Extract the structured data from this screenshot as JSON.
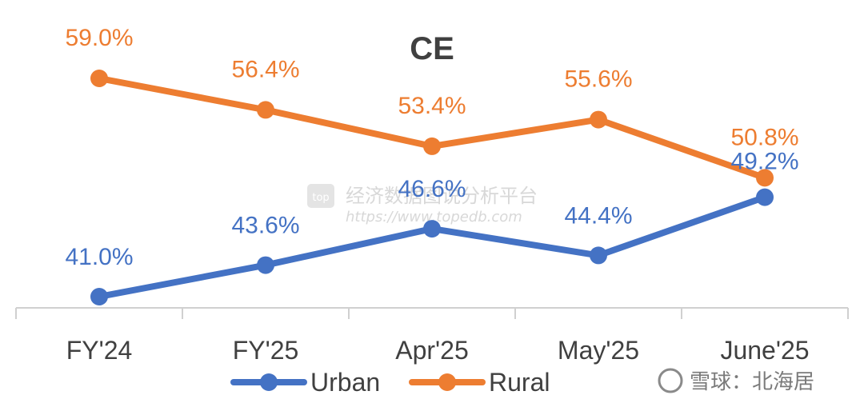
{
  "chart_data": {
    "type": "line",
    "title": "CE",
    "categories": [
      "FY'24",
      "FY'25",
      "Apr'25",
      "May'25",
      "June'25"
    ],
    "series": [
      {
        "name": "Urban",
        "color": "#4472C4",
        "values": [
          41.0,
          43.6,
          46.6,
          44.4,
          49.2
        ],
        "labels": [
          "41.0%",
          "43.6%",
          "46.6%",
          "44.4%",
          "49.2%"
        ]
      },
      {
        "name": "Rural",
        "color": "#ED7D31",
        "values": [
          59.0,
          56.4,
          53.4,
          55.6,
          50.8
        ],
        "labels": [
          "59.0%",
          "56.4%",
          "53.4%",
          "55.6%",
          "50.8%"
        ]
      }
    ],
    "ylim": [
      37.5,
      60.4
    ],
    "grid": false,
    "legend_position": "bottom"
  },
  "watermarks": {
    "center_text": "经济数据图说分析平台",
    "center_url": "https://www.topedb.com",
    "logo_text": "top",
    "corner_text": "雪球：北海居"
  }
}
